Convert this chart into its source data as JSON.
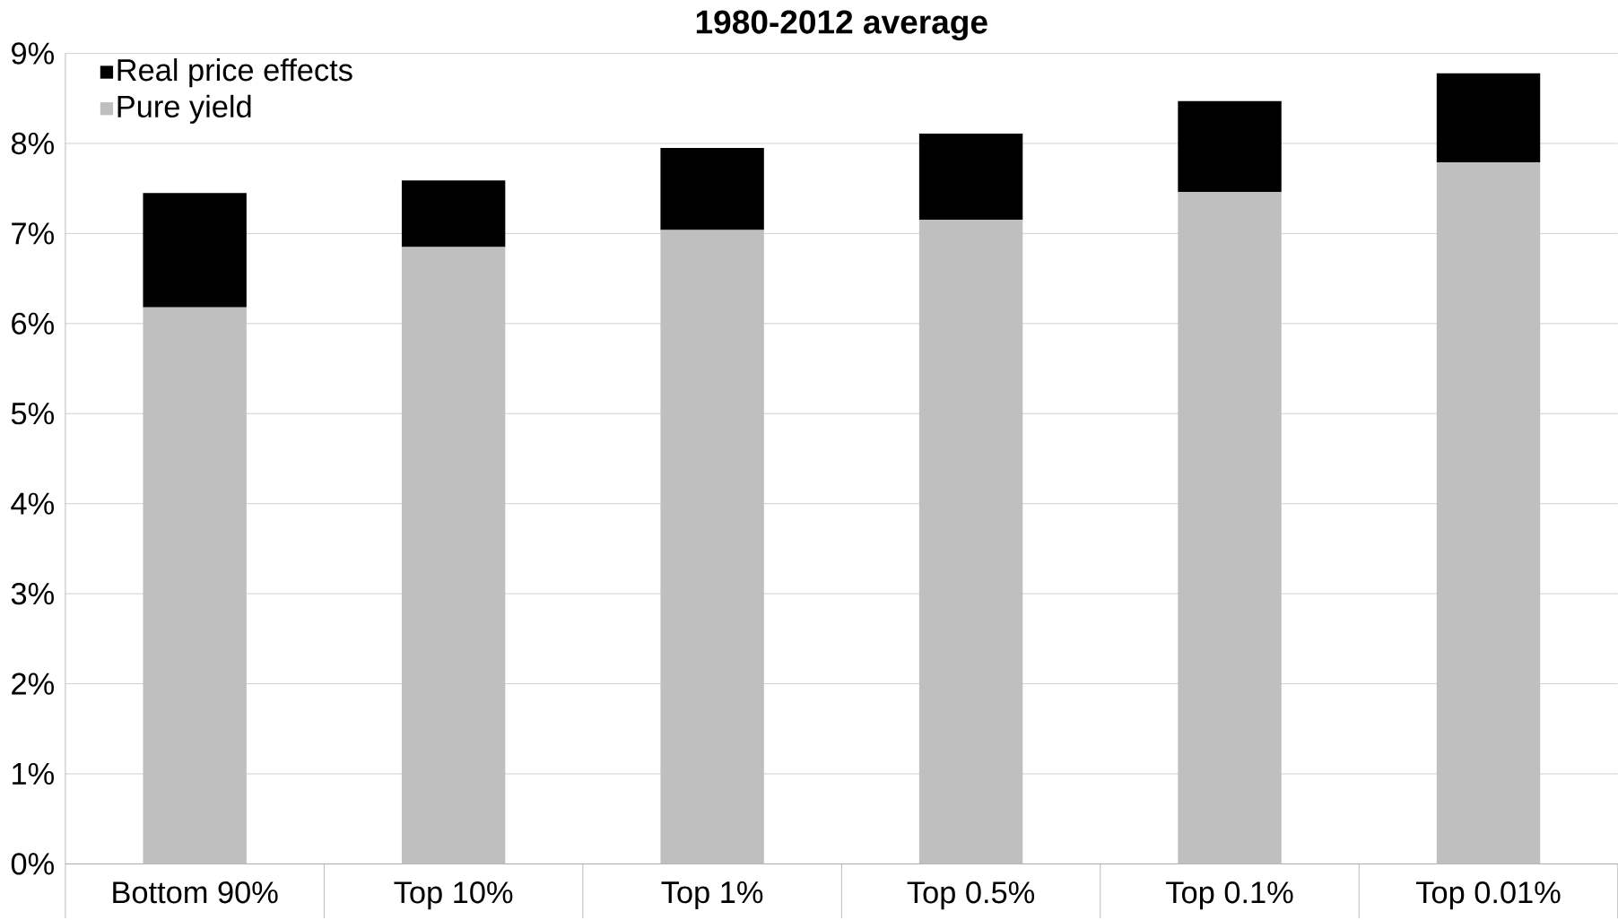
{
  "chart_data": {
    "type": "bar",
    "title": "1980-2012 average",
    "stacked": true,
    "categories": [
      "Bottom 90%",
      "Top 10%",
      "Top 1%",
      "Top 0.5%",
      "Top 0.1%",
      "Top 0.01%"
    ],
    "series": [
      {
        "name": "Pure yield",
        "color": "#bfbfbf",
        "values": [
          6.18,
          6.85,
          7.04,
          7.15,
          7.46,
          7.79
        ]
      },
      {
        "name": "Real price effects",
        "color": "#000000",
        "values": [
          1.27,
          0.74,
          0.91,
          0.96,
          1.01,
          0.99
        ]
      }
    ],
    "ylim": [
      0,
      9
    ],
    "yticks": [
      {
        "value": 0,
        "label": "0%"
      },
      {
        "value": 1,
        "label": "1%"
      },
      {
        "value": 2,
        "label": "2%"
      },
      {
        "value": 3,
        "label": "3%"
      },
      {
        "value": 4,
        "label": "4%"
      },
      {
        "value": 5,
        "label": "5%"
      },
      {
        "value": 6,
        "label": "6%"
      },
      {
        "value": 7,
        "label": "7%"
      },
      {
        "value": 8,
        "label": "8%"
      },
      {
        "value": 9,
        "label": "9%"
      }
    ],
    "grid": "y",
    "legend": "top left"
  }
}
